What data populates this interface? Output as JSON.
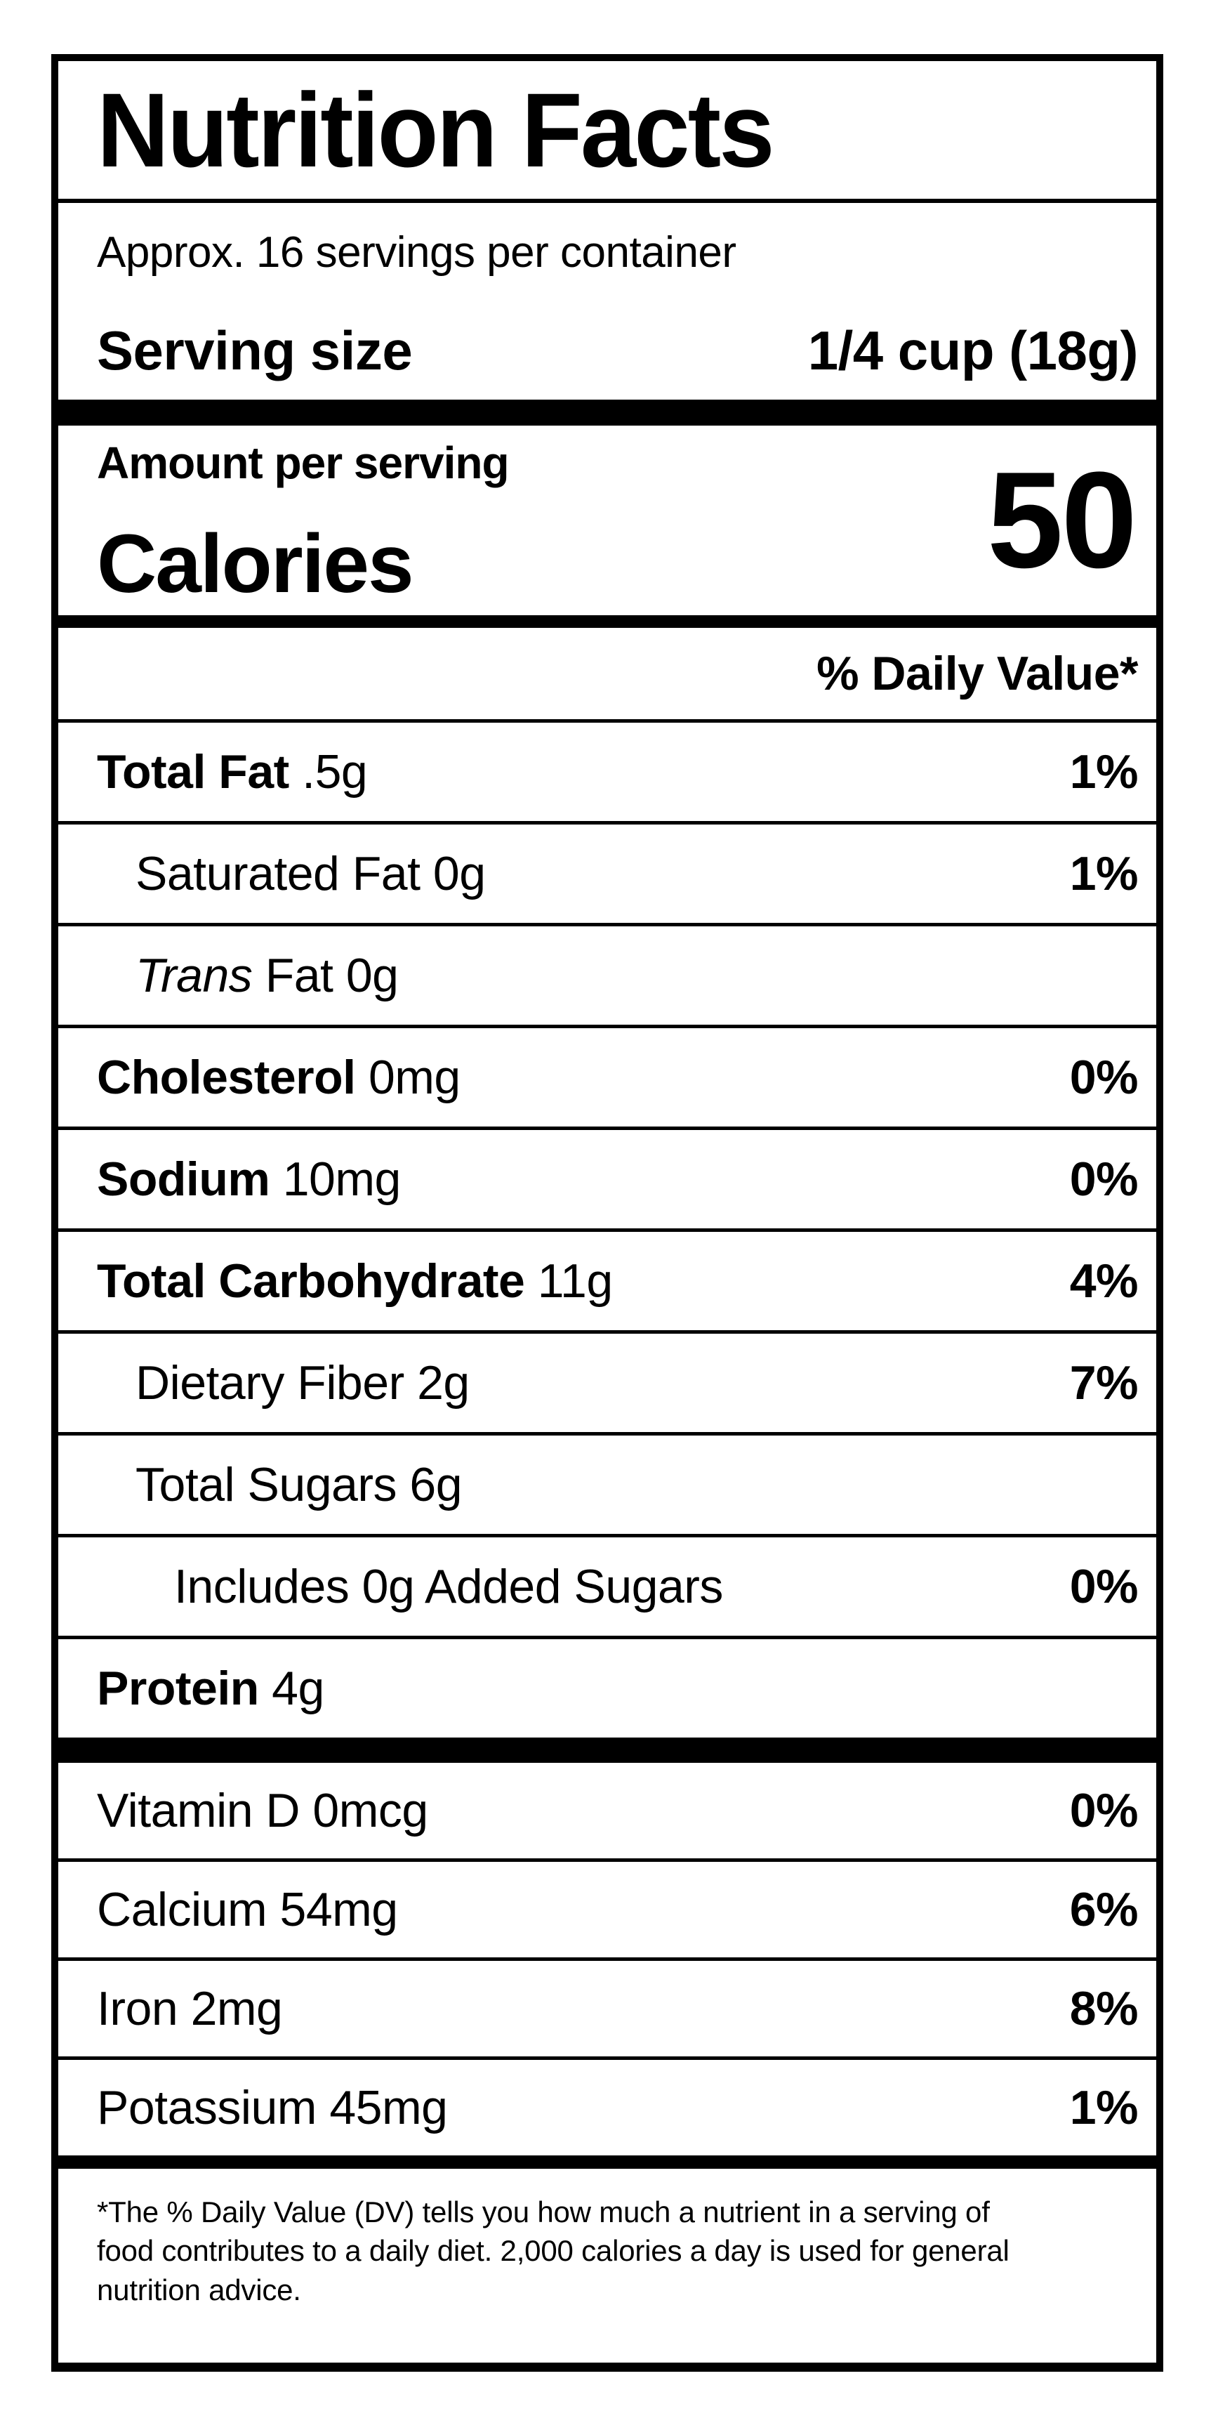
{
  "label": {
    "title": "Nutrition Facts",
    "servings_per_container": "Approx. 16 servings per container",
    "serving_size_label": "Serving size",
    "serving_size_value": "1/4 cup (18g)",
    "amount_per_serving_label": "Amount per serving",
    "calories_label": "Calories",
    "calories_value": "50",
    "daily_value_header": "% Daily Value*",
    "nutrients": [
      {
        "name": "Total Fat",
        "amount": ".5g",
        "dv": "1%",
        "bold": true,
        "indent": 0
      },
      {
        "name": "Saturated Fat",
        "amount": "0g",
        "dv": "1%",
        "bold": false,
        "indent": 1
      },
      {
        "name": "Fat",
        "name_italic": "Trans",
        "amount": "0g",
        "dv": "",
        "bold": false,
        "indent": 1
      },
      {
        "name": "Cholesterol",
        "amount": "0mg",
        "dv": "0%",
        "bold": true,
        "indent": 0
      },
      {
        "name": "Sodium",
        "amount": "10mg",
        "dv": "0%",
        "bold": true,
        "indent": 0
      },
      {
        "name": "Total Carbohydrate",
        "amount": "11g",
        "dv": "4%",
        "bold": true,
        "indent": 0
      },
      {
        "name": "Dietary Fiber",
        "amount": "2g",
        "dv": "7%",
        "bold": false,
        "indent": 1
      },
      {
        "name": "Total Sugars",
        "amount": "6g",
        "dv": "",
        "bold": false,
        "indent": 1
      },
      {
        "name": "Includes 0g Added Sugars",
        "amount": "",
        "dv": "0%",
        "bold": false,
        "indent": 2
      },
      {
        "name": "Protein",
        "amount": "4g",
        "dv": "",
        "bold": true,
        "indent": 0
      }
    ],
    "micronutrients": [
      {
        "name": "Vitamin D",
        "amount": "0mcg",
        "dv": "0%"
      },
      {
        "name": "Calcium",
        "amount": "54mg",
        "dv": "6%"
      },
      {
        "name": "Iron",
        "amount": "2mg",
        "dv": "8%"
      },
      {
        "name": "Potassium",
        "amount": "45mg",
        "dv": "1%"
      }
    ],
    "footnote": "*The % Daily Value (DV) tells you how much a nutrient in a serving of food contributes to a daily diet. 2,000 calories a day is used for general nutrition advice."
  }
}
